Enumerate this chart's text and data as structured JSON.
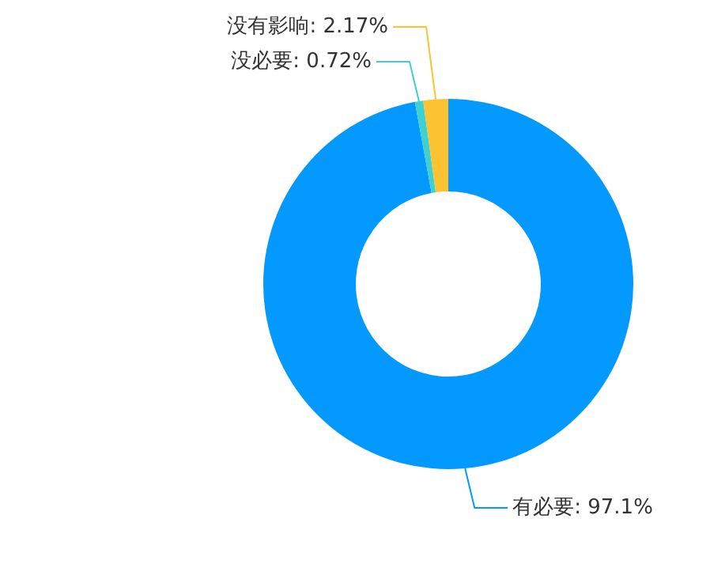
{
  "chart_data": {
    "type": "donut",
    "categories": [
      "有必要",
      "没必要",
      "没有影响"
    ],
    "values": [
      97.1,
      0.72,
      2.17
    ],
    "colors": [
      "#0399fe",
      "#3fd0cf",
      "#fbc231"
    ],
    "value_labels": [
      "97.1%",
      "0.72%",
      "2.17%"
    ],
    "legend": false
  }
}
